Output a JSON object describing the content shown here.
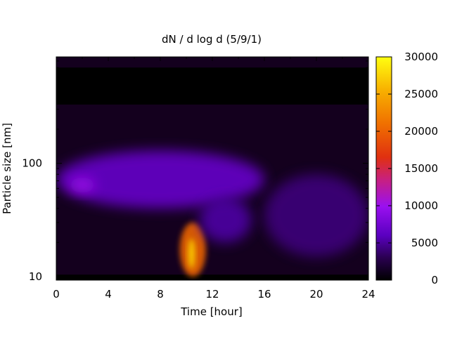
{
  "chart_data": {
    "type": "heatmap",
    "title": "dN / d log d (5/9/1)",
    "xlabel": "Time [hour]",
    "ylabel": "Particle size [nm]",
    "x_ticks": [
      "0",
      "4",
      "8",
      "12",
      "16",
      "20",
      "24"
    ],
    "x_tick_values": [
      0,
      4,
      8,
      12,
      16,
      20,
      24
    ],
    "xlim": [
      0,
      24
    ],
    "y_ticks": [
      "10",
      "100"
    ],
    "y_tick_values": [
      10,
      100
    ],
    "ylim": [
      9.3,
      870
    ],
    "y_scale": "log",
    "colorbar_ticks": [
      "0",
      "5000",
      "10000",
      "15000",
      "20000",
      "25000",
      "30000"
    ],
    "colorbar_tick_values": [
      0,
      5000,
      10000,
      15000,
      20000,
      25000,
      30000
    ],
    "color_range": [
      0,
      30000
    ],
    "colormap": "gnuplot (black-purple-red-yellow)",
    "features": [
      {
        "name": "broad accumulation mode",
        "time": [
          0,
          16
        ],
        "size_nm": [
          40,
          130
        ],
        "peak": 9000
      },
      {
        "name": "morning peak",
        "time": [
          1,
          3
        ],
        "size_nm": [
          55,
          75
        ],
        "peak": 13500
      },
      {
        "name": "new particle formation burst",
        "time": [
          9.5,
          11.5
        ],
        "size_nm": [
          10,
          30
        ],
        "peak": 27000
      },
      {
        "name": "afternoon growth",
        "time": [
          11,
          15
        ],
        "size_nm": [
          20,
          50
        ],
        "peak": 7000
      },
      {
        "name": "evening plumes",
        "time": [
          16,
          24
        ],
        "size_nm": [
          15,
          80
        ],
        "peak": 5500
      }
    ]
  }
}
